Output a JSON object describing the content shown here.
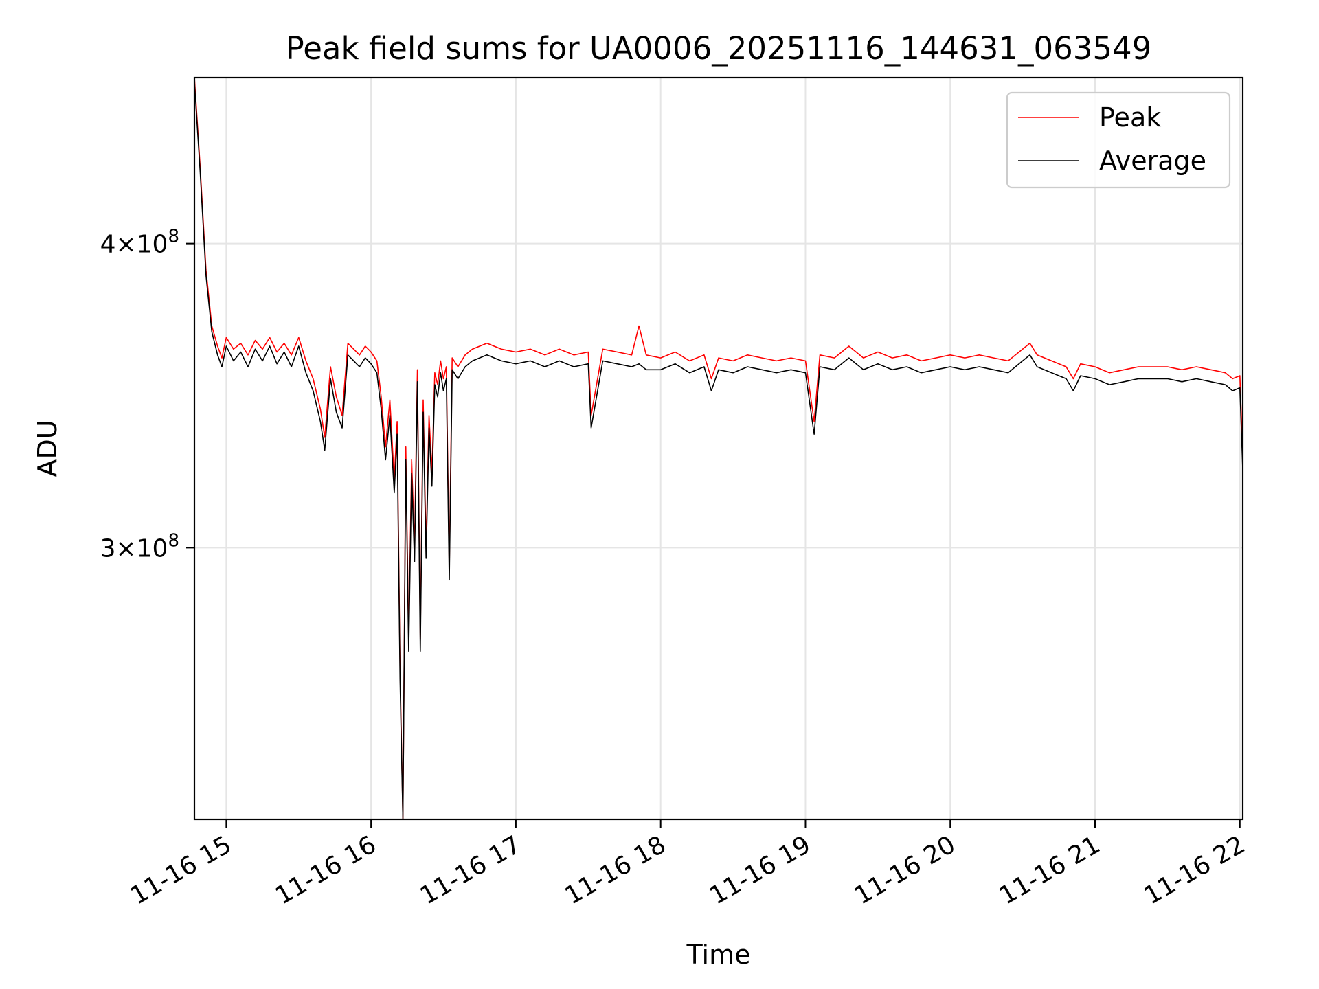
{
  "chart_data": {
    "type": "line",
    "title": "Peak field sums for UA0006_20251116_144631_063549",
    "xlabel": "Time",
    "ylabel": "ADU",
    "yscale": "log",
    "xlim": [
      14.78,
      22.02
    ],
    "ylim": [
      232000000,
      468000000
    ],
    "grid": true,
    "legend_position": "top-right",
    "x_ticks": [
      {
        "value": 15,
        "label": "11-16 15"
      },
      {
        "value": 16,
        "label": "11-16 16"
      },
      {
        "value": 17,
        "label": "11-16 17"
      },
      {
        "value": 18,
        "label": "11-16 18"
      },
      {
        "value": 19,
        "label": "11-16 19"
      },
      {
        "value": 20,
        "label": "11-16 20"
      },
      {
        "value": 21,
        "label": "11-16 21"
      },
      {
        "value": 22,
        "label": "11-16 22"
      }
    ],
    "y_ticks": [
      {
        "value": 300000000,
        "mantissa": "3",
        "exponent": "8"
      },
      {
        "value": 400000000,
        "mantissa": "4",
        "exponent": "8"
      }
    ],
    "series": [
      {
        "name": "Peak",
        "color": "#ff0000",
        "x": [
          14.78,
          14.82,
          14.86,
          14.9,
          14.94,
          14.97,
          15.0,
          15.05,
          15.1,
          15.15,
          15.2,
          15.25,
          15.3,
          15.35,
          15.4,
          15.45,
          15.5,
          15.55,
          15.6,
          15.65,
          15.68,
          15.72,
          15.76,
          15.8,
          15.84,
          15.88,
          15.92,
          15.96,
          16.0,
          16.04,
          16.07,
          16.1,
          16.13,
          16.16,
          16.18,
          16.2,
          16.22,
          16.24,
          16.26,
          16.28,
          16.3,
          16.32,
          16.34,
          16.36,
          16.38,
          16.4,
          16.42,
          16.44,
          16.46,
          16.48,
          16.5,
          16.52,
          16.54,
          16.56,
          16.6,
          16.65,
          16.7,
          16.8,
          16.9,
          17.0,
          17.1,
          17.2,
          17.3,
          17.4,
          17.5,
          17.52,
          17.6,
          17.7,
          17.8,
          17.85,
          17.9,
          18.0,
          18.1,
          18.2,
          18.3,
          18.35,
          18.4,
          18.5,
          18.6,
          18.7,
          18.8,
          18.9,
          19.0,
          19.06,
          19.1,
          19.2,
          19.3,
          19.4,
          19.5,
          19.6,
          19.7,
          19.8,
          19.9,
          20.0,
          20.1,
          20.2,
          20.3,
          20.4,
          20.5,
          20.55,
          20.6,
          20.7,
          20.8,
          20.85,
          20.9,
          21.0,
          21.1,
          21.2,
          21.3,
          21.4,
          21.5,
          21.6,
          21.7,
          21.8,
          21.9,
          21.95,
          22.0,
          22.02
        ],
        "values": [
          468000000,
          430000000,
          390000000,
          370000000,
          363000000,
          359000000,
          366000000,
          362000000,
          364000000,
          360000000,
          365000000,
          362000000,
          366000000,
          361000000,
          364000000,
          360000000,
          366000000,
          358000000,
          352000000,
          342000000,
          333000000,
          356000000,
          346000000,
          340000000,
          364000000,
          362000000,
          360000000,
          363000000,
          361000000,
          358000000,
          346000000,
          330000000,
          345000000,
          320000000,
          338000000,
          268000000,
          232000000,
          330000000,
          275000000,
          326000000,
          300000000,
          355000000,
          275000000,
          345000000,
          300000000,
          340000000,
          322000000,
          354000000,
          350000000,
          358000000,
          352000000,
          356000000,
          294000000,
          359000000,
          356000000,
          360000000,
          362000000,
          364000000,
          362000000,
          361000000,
          362000000,
          360000000,
          362000000,
          360000000,
          361000000,
          340000000,
          362000000,
          361000000,
          360000000,
          370000000,
          360000000,
          359000000,
          361000000,
          358000000,
          360000000,
          352000000,
          359000000,
          358000000,
          360000000,
          359000000,
          358000000,
          359000000,
          358000000,
          338000000,
          360000000,
          359000000,
          363000000,
          359000000,
          361000000,
          359000000,
          360000000,
          358000000,
          359000000,
          360000000,
          359000000,
          360000000,
          359000000,
          358000000,
          362000000,
          364000000,
          360000000,
          358000000,
          356000000,
          352000000,
          357000000,
          356000000,
          354000000,
          355000000,
          356000000,
          356000000,
          356000000,
          355000000,
          356000000,
          355000000,
          354000000,
          352000000,
          353000000,
          327000000
        ]
      },
      {
        "name": "Average",
        "color": "#000000",
        "x": [
          14.78,
          14.82,
          14.86,
          14.9,
          14.94,
          14.97,
          15.0,
          15.05,
          15.1,
          15.15,
          15.2,
          15.25,
          15.3,
          15.35,
          15.4,
          15.45,
          15.5,
          15.55,
          15.6,
          15.65,
          15.68,
          15.72,
          15.76,
          15.8,
          15.84,
          15.88,
          15.92,
          15.96,
          16.0,
          16.04,
          16.07,
          16.1,
          16.13,
          16.16,
          16.18,
          16.2,
          16.22,
          16.24,
          16.26,
          16.28,
          16.3,
          16.32,
          16.34,
          16.36,
          16.38,
          16.4,
          16.42,
          16.44,
          16.46,
          16.48,
          16.5,
          16.52,
          16.54,
          16.56,
          16.6,
          16.65,
          16.7,
          16.8,
          16.9,
          17.0,
          17.1,
          17.2,
          17.3,
          17.4,
          17.5,
          17.52,
          17.6,
          17.7,
          17.8,
          17.85,
          17.9,
          18.0,
          18.1,
          18.2,
          18.3,
          18.35,
          18.4,
          18.5,
          18.6,
          18.7,
          18.8,
          18.9,
          19.0,
          19.06,
          19.1,
          19.2,
          19.3,
          19.4,
          19.5,
          19.6,
          19.7,
          19.8,
          19.9,
          20.0,
          20.1,
          20.2,
          20.3,
          20.4,
          20.5,
          20.55,
          20.6,
          20.7,
          20.8,
          20.85,
          20.9,
          21.0,
          21.1,
          21.2,
          21.3,
          21.4,
          21.5,
          21.6,
          21.7,
          21.8,
          21.9,
          21.95,
          22.0,
          22.02
        ],
        "values": [
          466000000,
          428000000,
          388000000,
          368000000,
          360000000,
          356000000,
          363000000,
          358000000,
          361000000,
          356000000,
          362000000,
          358000000,
          363000000,
          357000000,
          361000000,
          356000000,
          363000000,
          354000000,
          348000000,
          338000000,
          329000000,
          352000000,
          341000000,
          336000000,
          360000000,
          358000000,
          356000000,
          359000000,
          357000000,
          354000000,
          342000000,
          326000000,
          340000000,
          316000000,
          334000000,
          265000000,
          232000000,
          326000000,
          272000000,
          322000000,
          296000000,
          351000000,
          272000000,
          341000000,
          297000000,
          336000000,
          318000000,
          350000000,
          346000000,
          354000000,
          348000000,
          352000000,
          291000000,
          355000000,
          352000000,
          356000000,
          358000000,
          360000000,
          358000000,
          357000000,
          358000000,
          356000000,
          358000000,
          356000000,
          357000000,
          336000000,
          358000000,
          357000000,
          356000000,
          357000000,
          355000000,
          355000000,
          357000000,
          354000000,
          356000000,
          348000000,
          355000000,
          354000000,
          356000000,
          355000000,
          354000000,
          355000000,
          354000000,
          334000000,
          356000000,
          355000000,
          359000000,
          355000000,
          357000000,
          355000000,
          356000000,
          354000000,
          355000000,
          356000000,
          355000000,
          356000000,
          355000000,
          354000000,
          358000000,
          360000000,
          356000000,
          354000000,
          352000000,
          348000000,
          353000000,
          352000000,
          350000000,
          351000000,
          352000000,
          352000000,
          352000000,
          351000000,
          352000000,
          351000000,
          350000000,
          348000000,
          349000000,
          323000000
        ]
      }
    ]
  }
}
